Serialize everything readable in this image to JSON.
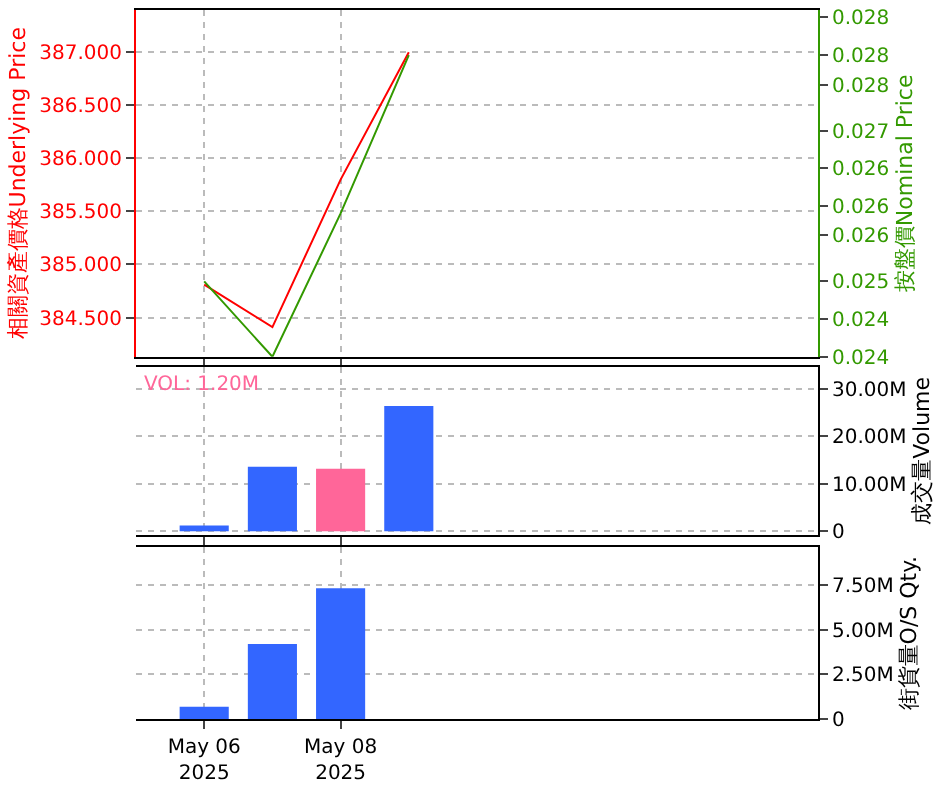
{
  "chart_data": [
    {
      "type": "line",
      "x": [
        "2025-05-06",
        "2025-05-07",
        "2025-05-08",
        "2025-05-09"
      ],
      "ylabel": "相關資產價格Underlying Price",
      "y2label": "按盤價Nominal Price",
      "series": [
        {
          "color": "#ff0000",
          "values": [
            384.81,
            384.41,
            385.8,
            387.0
          ]
        },
        {
          "color": "#339900",
          "axis": "y2",
          "values": [
            0.0249,
            0.0239,
            0.0258,
            0.0279
          ]
        }
      ],
      "xlim": [
        "2025-05-05",
        "2025-05-15"
      ],
      "xticks": [
        {
          "value": "2025-05-06",
          "label": null
        },
        {
          "value": "2025-05-08",
          "label": null
        }
      ],
      "ylim": [
        384.13,
        387.4
      ],
      "yticks": [
        {
          "value": 384.5,
          "label": "384.500"
        },
        {
          "value": 385.0,
          "label": "385.000"
        },
        {
          "value": 385.5,
          "label": "385.500"
        },
        {
          "value": 386.0,
          "label": "386.000"
        },
        {
          "value": 386.5,
          "label": "386.500"
        },
        {
          "value": 387.0,
          "label": "387.000"
        }
      ],
      "y2lim": [
        0.0239,
        0.0285
      ],
      "y2ticks": [
        {
          "value": 0.0239,
          "label": "0.024"
        },
        {
          "value": 0.0244,
          "label": "0.024"
        },
        {
          "value": 0.0249,
          "label": "0.025"
        },
        {
          "value": 0.02551,
          "label": "0.026"
        },
        {
          "value": 0.0259,
          "label": "0.026"
        },
        {
          "value": 0.0264,
          "label": "0.026"
        },
        {
          "value": 0.0269,
          "label": "0.027"
        },
        {
          "value": 0.02751,
          "label": "0.028"
        },
        {
          "value": 0.0279,
          "label": "0.028"
        },
        {
          "value": 0.0284,
          "label": "0.028"
        }
      ],
      "grid": true,
      "tick_labels": "y"
    },
    {
      "type": "bar",
      "x": [
        "2025-05-06",
        "2025-05-07",
        "2025-05-08",
        "2025-05-09"
      ],
      "ylabel": "成交量Volume",
      "annotations": [
        "VOL: 1.20M"
      ],
      "series": [
        {
          "colors": [
            "#3366ff",
            "#3366ff",
            "#ff6699",
            "#3366ff"
          ],
          "values": [
            1200000,
            13600000,
            13200000,
            26400000
          ]
        }
      ],
      "xlim": [
        "2025-05-05",
        "2025-05-15"
      ],
      "xticks": [
        {
          "value": "2025-05-06",
          "label": null
        },
        {
          "value": "2025-05-08",
          "label": null
        }
      ],
      "ylim": [
        -800000,
        34700000
      ],
      "yticks": [
        {
          "value": 0,
          "label": "0"
        },
        {
          "value": 10000000,
          "label": "10.00M"
        },
        {
          "value": 20000000,
          "label": "20.00M"
        },
        {
          "value": 30000000,
          "label": "30.00M"
        }
      ],
      "grid": true,
      "tick_labels": "y"
    },
    {
      "type": "bar",
      "x": [
        "2025-05-06",
        "2025-05-07",
        "2025-05-08"
      ],
      "ylabel": "街貨量O/S Qty.",
      "series": [
        {
          "color": "#3366ff",
          "values": [
            700000,
            4200000,
            7300000
          ]
        }
      ],
      "xlim": [
        "2025-05-05",
        "2025-05-15"
      ],
      "xticks": [
        {
          "value": "2025-05-06",
          "label": "May 06\n2025"
        },
        {
          "value": "2025-05-08",
          "label": "May 08\n2025"
        }
      ],
      "ylim": [
        0,
        9600000
      ],
      "yticks": [
        {
          "value": 0,
          "label": "0"
        },
        {
          "value": 2500000,
          "label": "2.50M"
        },
        {
          "value": 5000000,
          "label": "5.00M"
        },
        {
          "value": 7500000,
          "label": "7.50M"
        }
      ],
      "grid": true
    }
  ]
}
